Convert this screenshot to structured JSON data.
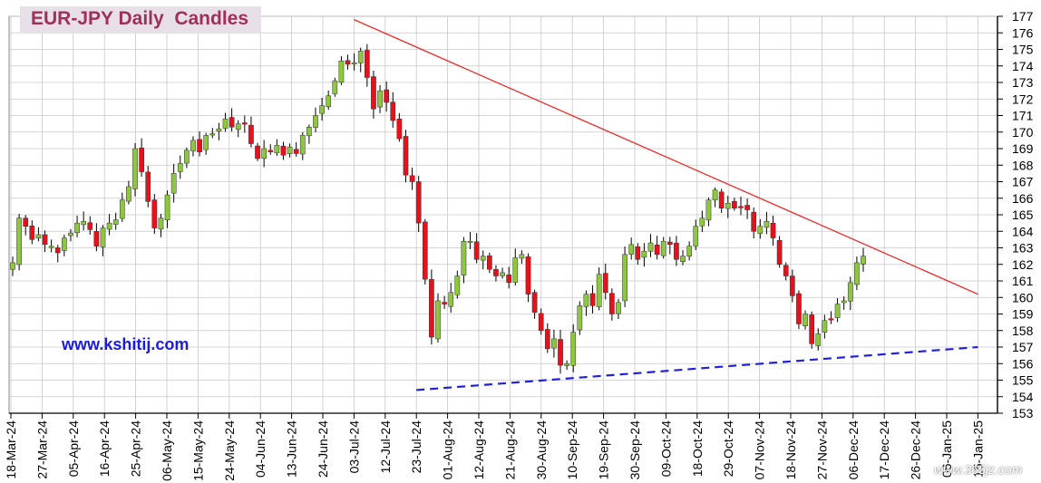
{
  "chart_data": {
    "type": "candlestick",
    "title": "EUR-JPY Daily  Candles",
    "ylim": [
      153,
      177
    ],
    "y_ticks": [
      153,
      154,
      155,
      156,
      157,
      158,
      159,
      160,
      161,
      162,
      163,
      164,
      165,
      166,
      167,
      168,
      169,
      170,
      171,
      172,
      173,
      174,
      175,
      176,
      177
    ],
    "x_ticks": [
      "18-Mar-24",
      "27-Mar-24",
      "05-Apr-24",
      "16-Apr-24",
      "25-Apr-24",
      "06-May-24",
      "15-May-24",
      "24-May-24",
      "04-Jun-24",
      "13-Jun-24",
      "24-Jun-24",
      "03-Jul-24",
      "12-Jul-24",
      "23-Jul-24",
      "01-Aug-24",
      "12-Aug-24",
      "21-Aug-24",
      "30-Aug-24",
      "10-Sep-24",
      "19-Sep-24",
      "30-Sep-24",
      "09-Oct-24",
      "18-Oct-24",
      "29-Oct-24",
      "07-Nov-24",
      "18-Nov-24",
      "27-Nov-24",
      "06-Dec-24",
      "17-Dec-24",
      "26-Dec-24",
      "06-Jan-25",
      "15-Jan-25"
    ],
    "grid": true,
    "colors": {
      "up": "#8dc63f",
      "down": "#e8101a",
      "wick": "#000000",
      "resistance": "#ee2a2a",
      "support": "#2222dd",
      "grid": "#c8c8c8"
    },
    "close_series": [
      162.1,
      164.8,
      164.3,
      163.5,
      163.8,
      163.2,
      163.1,
      162.7,
      163.6,
      163.9,
      164.5,
      164.6,
      164.1,
      163.1,
      164.2,
      164.5,
      164.7,
      165.9,
      166.7,
      169.0,
      167.6,
      165.8,
      164.2,
      164.8,
      166.2,
      167.5,
      168.1,
      168.9,
      169.5,
      168.8,
      169.8,
      169.9,
      170.2,
      170.8,
      170.3,
      170.5,
      170.5,
      169.3,
      168.4,
      169.0,
      168.8,
      169.2,
      168.6,
      169.1,
      168.7,
      169.8,
      170.3,
      171.0,
      171.6,
      172.2,
      173.1,
      174.3,
      174.1,
      174.2,
      174.9,
      173.3,
      171.4,
      172.5,
      171.8,
      170.7,
      169.6,
      167.4,
      167.0,
      164.5,
      161.1,
      157.6,
      159.8,
      159.6,
      160.3,
      161.3,
      163.4,
      163.4,
      162.3,
      162.5,
      161.7,
      161.3,
      161.5,
      160.9,
      162.4,
      162.6,
      160.2,
      159.1,
      158.0,
      156.9,
      157.5,
      155.9,
      156.0,
      157.9,
      159.5,
      160.2,
      159.5,
      161.4,
      160.3,
      159.0,
      159.7,
      162.6,
      163.2,
      162.3,
      162.8,
      163.3,
      162.6,
      163.4,
      163.2,
      162.3,
      162.5,
      163.1,
      164.3,
      164.8,
      165.9,
      166.5,
      165.4,
      165.7,
      165.4,
      165.5,
      165.3,
      164.0,
      164.3,
      164.6,
      163.6,
      162.0,
      161.3,
      160.1,
      158.4,
      159.0,
      157.2,
      157.8,
      158.6,
      158.7,
      159.6,
      159.8,
      160.9,
      162.1,
      162.5
    ],
    "resistance_line": {
      "from": {
        "date": "03-Jul-24",
        "value": 176.8
      },
      "to": {
        "date": "15-Jan-25",
        "value": 160.2
      }
    },
    "support_line": {
      "from": {
        "date": "23-Jul-24",
        "value": 154.4
      },
      "to": {
        "date": "15-Jan-25",
        "value": 157.0
      }
    }
  },
  "site_label": "www.kshitij.com",
  "watermark": "www.365jz.com"
}
